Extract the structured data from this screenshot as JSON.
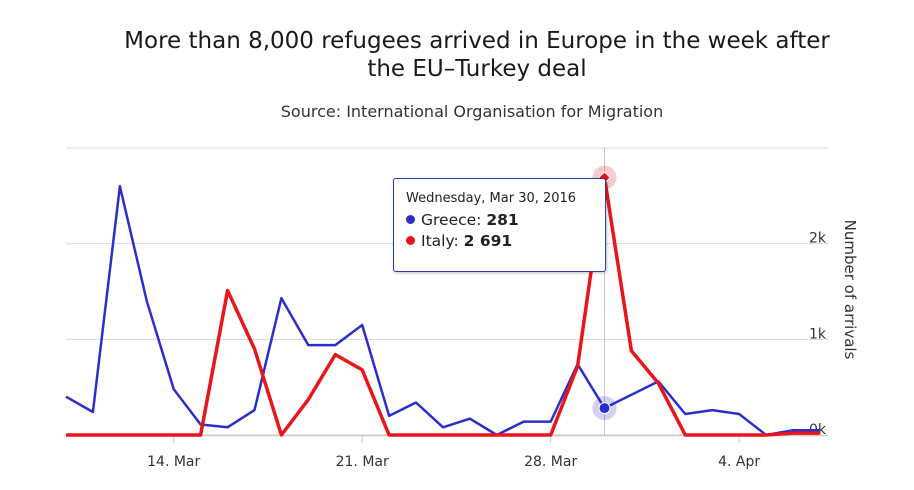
{
  "title_line1": "More than 8,000 refugees arrived in Europe in the week after",
  "title_line2": "the EU–Turkey deal",
  "subtitle": "Source: International Organisation for Migration",
  "tooltip": {
    "date": "Wednesday, Mar 30, 2016",
    "greece_label": "Greece: ",
    "greece_value": "281",
    "italy_label": "Italy: ",
    "italy_value": "2 691"
  },
  "colors": {
    "greece": "#2a2fcc",
    "italy": "#e8161b",
    "grid": "#d9d9d9",
    "axis": "#c8c8c8",
    "text": "#333333"
  },
  "chart_data": {
    "type": "line",
    "title": "More than 8,000 refugees arrived in Europe in the week after the EU–Turkey deal",
    "subtitle": "Source: International Organisation for Migration",
    "x_start_day": 10,
    "x": [
      10,
      11,
      12,
      13,
      14,
      15,
      16,
      17,
      18,
      19,
      20,
      21,
      22,
      23,
      24,
      25,
      26,
      27,
      28,
      29,
      30,
      31,
      32,
      33,
      34,
      35,
      36,
      37,
      38
    ],
    "x_tick_days": [
      14,
      21,
      28,
      35
    ],
    "x_tick_labels": [
      "14. Mar",
      "21. Mar",
      "28. Mar",
      "4. Apr"
    ],
    "ylabel": "Number of arrivals",
    "ylim": [
      0,
      3000
    ],
    "y_ticks": [
      0,
      1000,
      2000
    ],
    "y_tick_labels": [
      "0k",
      "1k",
      "2k"
    ],
    "legend": "none",
    "series": [
      {
        "name": "Greece",
        "color": "#2a2fcc",
        "values": [
          400,
          240,
          2600,
          1400,
          480,
          110,
          80,
          260,
          1430,
          940,
          940,
          1150,
          200,
          340,
          80,
          170,
          0,
          140,
          140,
          740,
          281,
          420,
          560,
          220,
          260,
          220,
          0,
          50,
          50
        ]
      },
      {
        "name": "Italy",
        "color": "#e8161b",
        "values": [
          0,
          0,
          0,
          0,
          0,
          0,
          1510,
          900,
          0,
          370,
          840,
          680,
          0,
          0,
          0,
          0,
          0,
          0,
          0,
          720,
          2691,
          880,
          540,
          0,
          0,
          0,
          0,
          20,
          20
        ]
      }
    ],
    "highlight_day": 30
  }
}
